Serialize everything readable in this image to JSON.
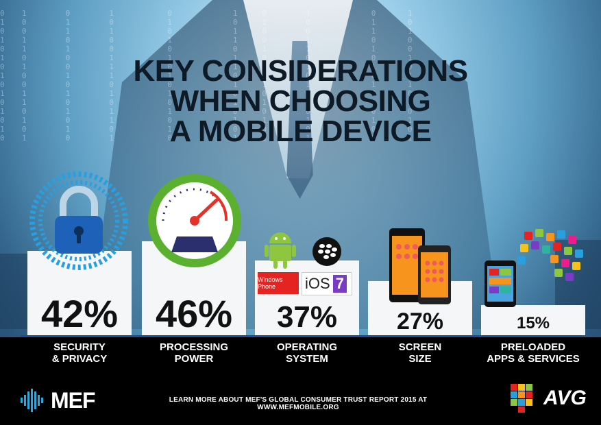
{
  "title": {
    "line1": "KEY CONSIDERATIONS",
    "line2": "WHEN CHOOSING",
    "line3": "A MOBILE DEVICE"
  },
  "items": [
    {
      "percent": "42%",
      "label_line1": "SECURITY",
      "label_line2": "& PRIVACY",
      "icon": "padlock-icon",
      "value": 42
    },
    {
      "percent": "46%",
      "label_line1": "PROCESSING",
      "label_line2": "POWER",
      "icon": "speedometer-icon",
      "value": 46
    },
    {
      "percent": "37%",
      "label_line1": "OPERATING",
      "label_line2": "SYSTEM",
      "icon": "os-logos-icon",
      "value": 37
    },
    {
      "percent": "27%",
      "label_line1": "SCREEN",
      "label_line2": "SIZE",
      "icon": "smartphones-icon",
      "value": 27
    },
    {
      "percent": "15%",
      "label_line1": "PRELOADED",
      "label_line2": "APPS & SERVICES",
      "icon": "apps-cloud-icon",
      "value": 15
    }
  ],
  "os_badges": {
    "windows_phone": "Windows Phone",
    "ios": "iOS",
    "ios_version": "7"
  },
  "footer": {
    "text": "LEARN MORE ABOUT MEF'S GLOBAL CONSUMER TRUST REPORT 2015 AT WWW.MEFMOBILE.ORG",
    "mef_logo": "MEF",
    "avg_logo": "AVG"
  },
  "colors": {
    "accent_blue": "#1d4f8c",
    "lock_blue": "#2a9fe0",
    "gauge_green": "#5bb030",
    "android_green": "#8ec63f",
    "windows_red": "#e52421",
    "orange_screen": "#f7941d"
  }
}
